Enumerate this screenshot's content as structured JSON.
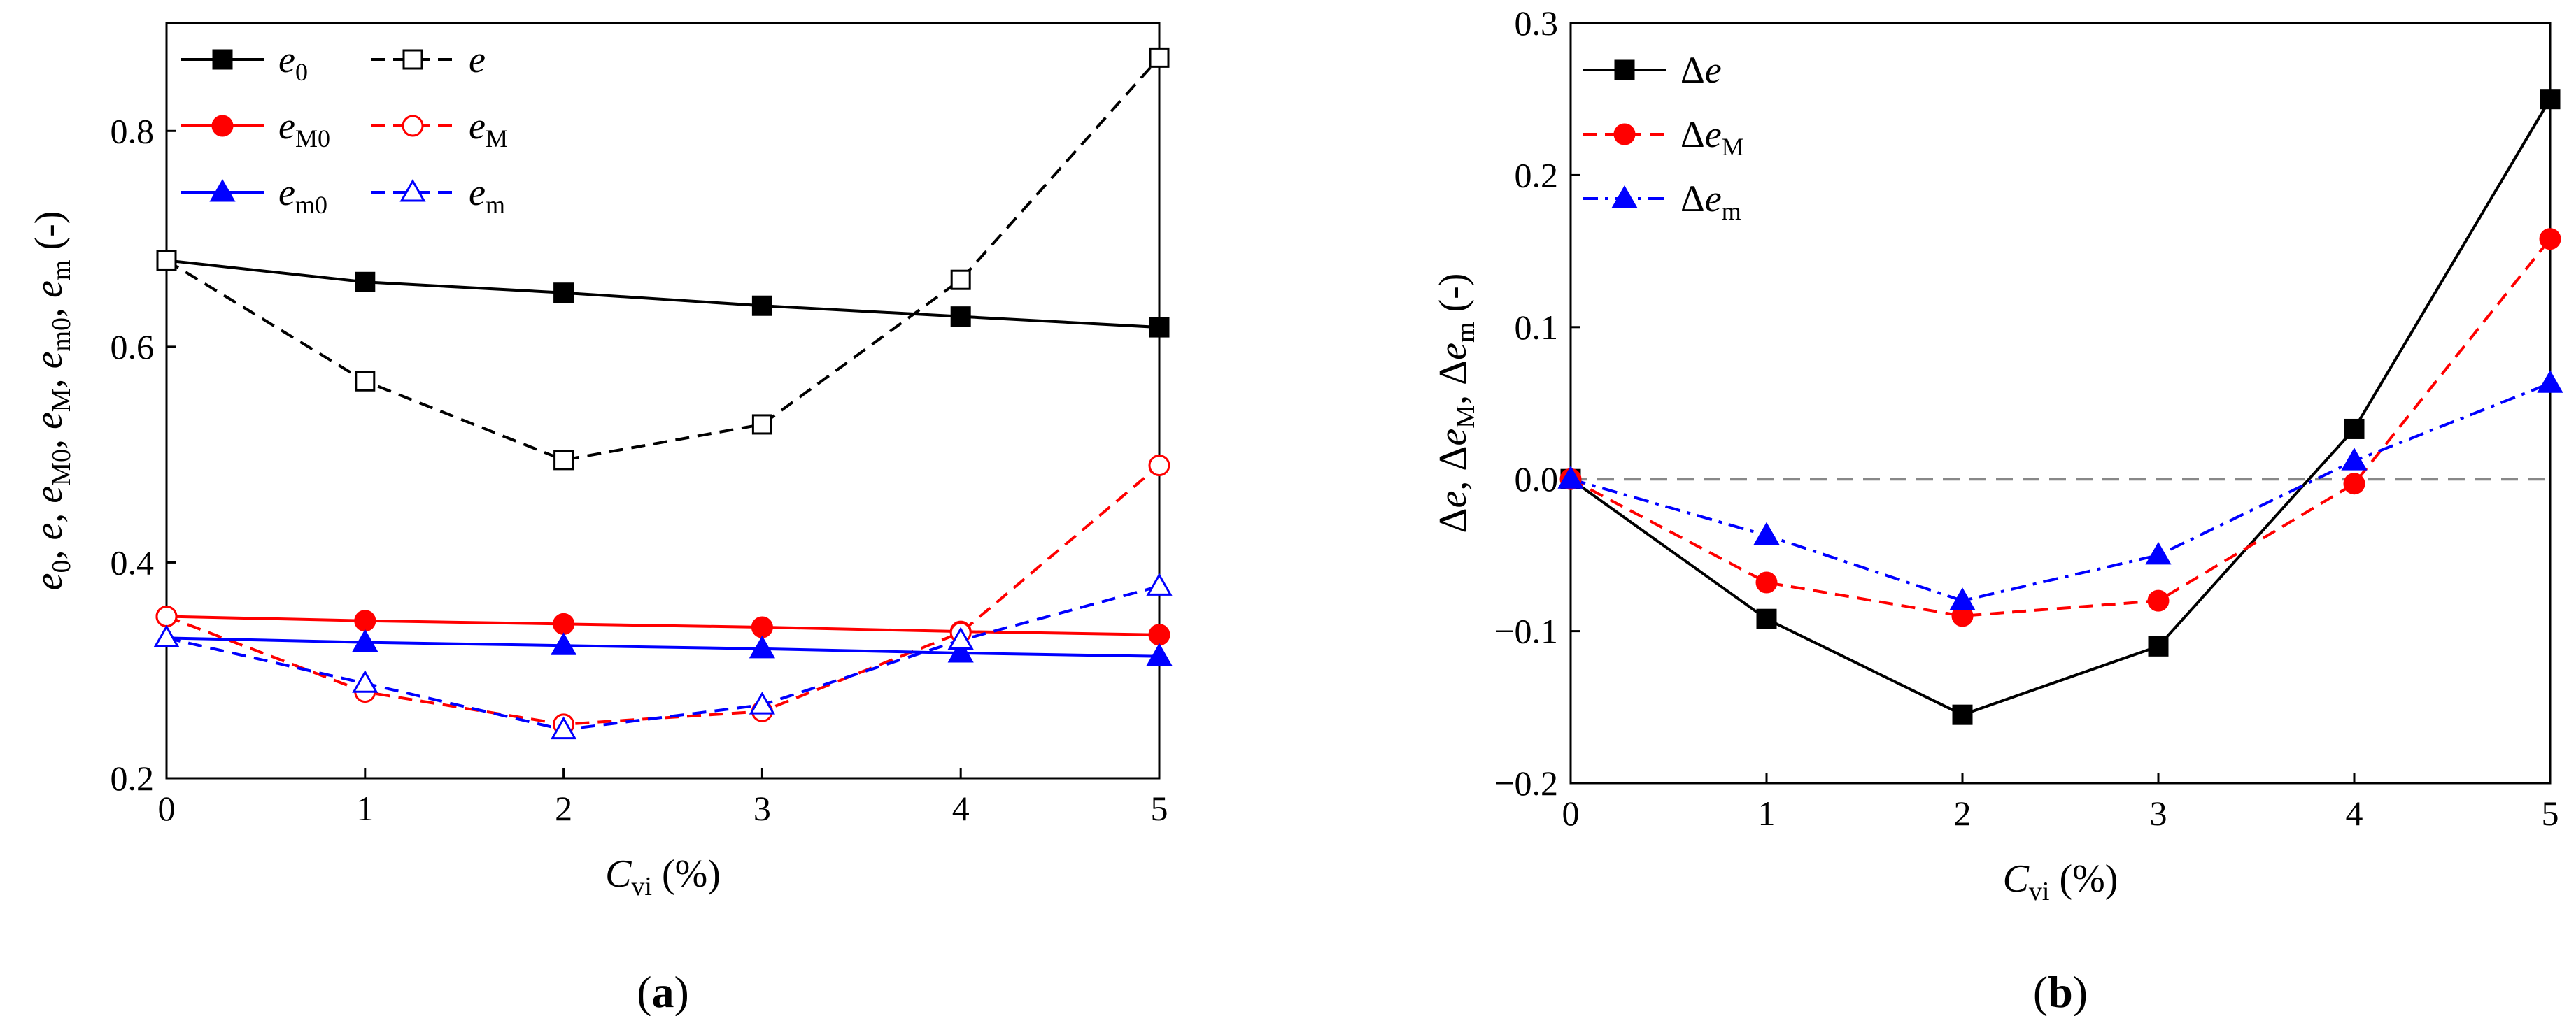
{
  "chart_data": [
    {
      "type": "line",
      "panel_label_parts": [
        "(",
        "a",
        ")"
      ],
      "x": [
        0,
        1,
        2,
        3,
        4,
        5
      ],
      "xlim": [
        0,
        5
      ],
      "ylim": [
        0.2,
        0.9
      ],
      "xticks": [
        "0",
        "1",
        "2",
        "3",
        "4",
        "5"
      ],
      "yticks": [
        "0.2",
        "0.4",
        "0.6",
        "0.8"
      ],
      "ytick_values": [
        0.2,
        0.4,
        0.6,
        0.8
      ],
      "xlabel": {
        "main": "C",
        "sub": "vi",
        "rest": " (%)"
      },
      "ylabel_parts": [
        {
          "t": "e",
          "it": true
        },
        {
          "t": "0",
          "sub": true
        },
        {
          "t": ", "
        },
        {
          "t": "e",
          "it": true
        },
        {
          "t": ", "
        },
        {
          "t": "e",
          "it": true
        },
        {
          "t": "M0",
          "sub": true
        },
        {
          "t": ", "
        },
        {
          "t": "e",
          "it": true
        },
        {
          "t": "M",
          "sub": true
        },
        {
          "t": ", "
        },
        {
          "t": "e",
          "it": true
        },
        {
          "t": "m0",
          "sub": true
        },
        {
          "t": ", "
        },
        {
          "t": "e",
          "it": true
        },
        {
          "t": "m",
          "sub": true
        },
        {
          "t": " (-)"
        }
      ],
      "series": [
        {
          "name": "e0",
          "label": "e",
          "sub": "0",
          "color": "#000000",
          "dash": "solid",
          "marker": "square",
          "filled": true,
          "values": [
            0.68,
            0.66,
            0.65,
            0.638,
            0.628,
            0.618
          ]
        },
        {
          "name": "e",
          "label": "e",
          "sub": "",
          "color": "#000000",
          "dash": "dashed",
          "marker": "square",
          "filled": false,
          "values": [
            0.68,
            0.568,
            0.495,
            0.528,
            0.662,
            0.868
          ]
        },
        {
          "name": "eM0",
          "label": "e",
          "sub": "M0",
          "color": "#ff0000",
          "dash": "solid",
          "marker": "circle",
          "filled": true,
          "values": [
            0.35,
            0.346,
            0.343,
            0.34,
            0.336,
            0.333
          ]
        },
        {
          "name": "eM",
          "label": "e",
          "sub": "M",
          "color": "#ff0000",
          "dash": "dashed",
          "marker": "circle",
          "filled": false,
          "values": [
            0.35,
            0.28,
            0.25,
            0.262,
            0.335,
            0.49
          ]
        },
        {
          "name": "em0",
          "label": "e",
          "sub": "m0",
          "color": "#0000ff",
          "dash": "solid",
          "marker": "triangle",
          "filled": true,
          "values": [
            0.33,
            0.326,
            0.323,
            0.32,
            0.316,
            0.313
          ]
        },
        {
          "name": "em",
          "label": "e",
          "sub": "m",
          "color": "#0000ff",
          "dash": "dashed",
          "marker": "triangle",
          "filled": false,
          "values": [
            0.33,
            0.288,
            0.245,
            0.268,
            0.328,
            0.378
          ]
        }
      ],
      "legend": {
        "position": "top-left",
        "columns": 2
      }
    },
    {
      "type": "line",
      "panel_label_parts": [
        "(",
        "b",
        ")"
      ],
      "x": [
        0,
        1,
        2,
        3,
        4,
        5
      ],
      "xlim": [
        0,
        5
      ],
      "ylim": [
        -0.2,
        0.3
      ],
      "xticks": [
        "0",
        "1",
        "2",
        "3",
        "4",
        "5"
      ],
      "yticks": [
        "-0.2",
        "-0.1",
        "0.0",
        "0.1",
        "0.2",
        "0.3"
      ],
      "ytick_values": [
        -0.2,
        -0.1,
        0.0,
        0.1,
        0.2,
        0.3
      ],
      "xlabel": {
        "main": "C",
        "sub": "vi",
        "rest": " (%)"
      },
      "ylabel_parts": [
        {
          "t": "Δ"
        },
        {
          "t": "e",
          "it": true
        },
        {
          "t": ", Δ"
        },
        {
          "t": "e",
          "it": true
        },
        {
          "t": "M",
          "sub": true
        },
        {
          "t": ", Δ"
        },
        {
          "t": "e",
          "it": true
        },
        {
          "t": "m",
          "sub": true
        },
        {
          "t": " (-)"
        }
      ],
      "reference_line": {
        "y": 0.0,
        "color": "#888888",
        "dash": "dashed"
      },
      "series": [
        {
          "name": "delta-e",
          "label": "Δe",
          "sub": "",
          "color": "#000000",
          "dash": "solid",
          "marker": "square",
          "filled": true,
          "values": [
            0.0,
            -0.092,
            -0.155,
            -0.11,
            0.033,
            0.25
          ]
        },
        {
          "name": "delta-eM",
          "label": "Δe",
          "sub": "M",
          "color": "#ff0000",
          "dash": "dashed",
          "marker": "circle",
          "filled": true,
          "values": [
            0.0,
            -0.068,
            -0.09,
            -0.08,
            -0.003,
            0.158
          ]
        },
        {
          "name": "delta-em",
          "label": "Δe",
          "sub": "m",
          "color": "#0000ff",
          "dash": "dashdot",
          "marker": "triangle",
          "filled": true,
          "values": [
            0.0,
            -0.037,
            -0.08,
            -0.05,
            0.012,
            0.063
          ]
        }
      ],
      "legend": {
        "position": "top-left",
        "columns": 1
      }
    }
  ]
}
